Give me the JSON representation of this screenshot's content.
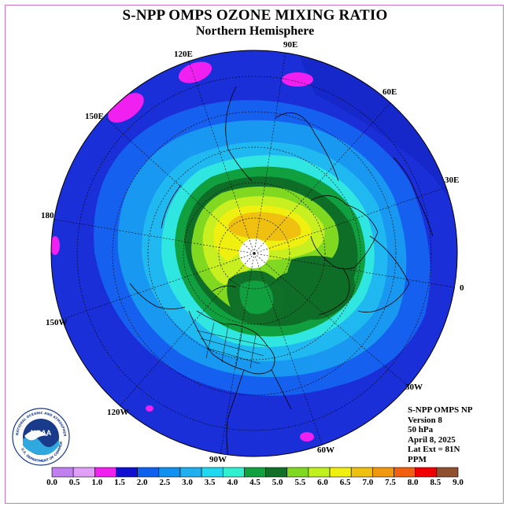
{
  "title": "S-NPP OMPS OZONE MIXING RATIO",
  "subtitle": "Northern Hemisphere",
  "longitude_labels": [
    "90E",
    "60E",
    "30E",
    "0",
    "30W",
    "60W",
    "90W",
    "120W",
    "150W",
    "180",
    "150E",
    "120E"
  ],
  "info": {
    "instrument": "S-NPP OMPS NP",
    "version": "Version 8",
    "level": "50 hPa",
    "date": "April 8, 2025",
    "lat_ext": "Lat Ext = 81N",
    "units": "PPM"
  },
  "logo": {
    "text": "NOAA",
    "ring_text_top": "NATIONAL OCEANIC AND ATMOSPHERIC ADMINISTRATION",
    "ring_text_bottom": "U.S. DEPARTMENT OF COMMERCE"
  },
  "colorbar": {
    "labels": [
      "0.0",
      "0.5",
      "1.0",
      "1.5",
      "2.0",
      "2.5",
      "3.0",
      "3.5",
      "4.0",
      "4.5",
      "5.0",
      "5.5",
      "6.0",
      "6.5",
      "7.0",
      "7.5",
      "8.0",
      "8.5",
      "9.0"
    ],
    "colors": [
      "#c080f0",
      "#e0a0f8",
      "#f020f0",
      "#1010d0",
      "#1060f0",
      "#1090f0",
      "#20b0f0",
      "#20d8f0",
      "#30f0d0",
      "#10a040",
      "#107028",
      "#80d820",
      "#c0f020",
      "#f0f010",
      "#f0c010",
      "#f09810",
      "#f06010",
      "#f00000",
      "#905030"
    ]
  },
  "colors": {
    "frame": "#d070d0",
    "outer_band": "#1a2fd8",
    "polar_cap": "#ffffff"
  }
}
